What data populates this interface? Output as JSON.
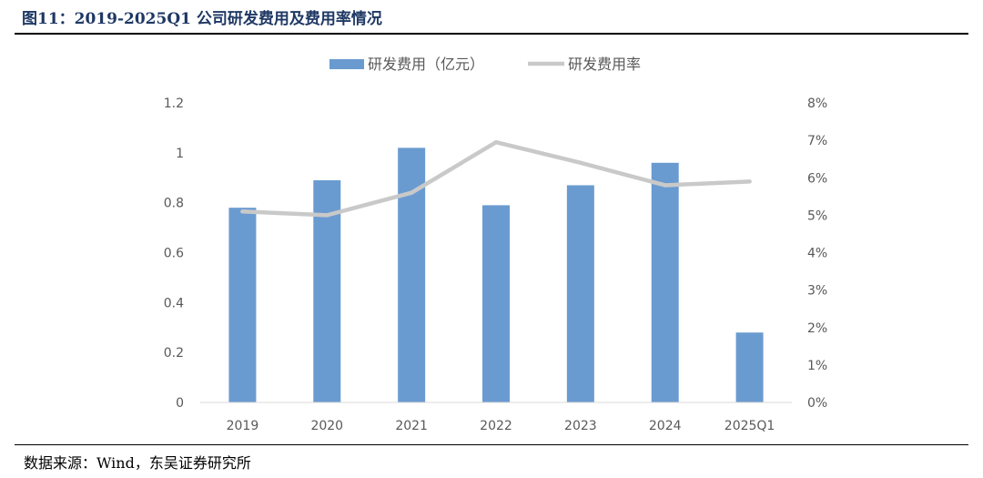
{
  "title": "图11：2019-2025Q1 公司研发费用及费用率情况",
  "source": "数据来源：Wind，东吴证券研究所",
  "chart_data": {
    "type": "bar",
    "categories": [
      "2019",
      "2020",
      "2021",
      "2022",
      "2023",
      "2024",
      "2025Q1"
    ],
    "series": [
      {
        "name": "研发费用（亿元）",
        "type": "bar",
        "axis": "left",
        "values": [
          0.78,
          0.89,
          1.02,
          0.79,
          0.87,
          0.96,
          0.28
        ]
      },
      {
        "name": "研发费用率",
        "type": "line",
        "axis": "right",
        "values": [
          5.1,
          5.0,
          5.6,
          6.95,
          6.4,
          5.8,
          5.9
        ]
      }
    ],
    "left_ticks": [
      "0",
      "0.2",
      "0.4",
      "0.6",
      "0.8",
      "1",
      "1.2"
    ],
    "right_ticks": [
      "0%",
      "1%",
      "2%",
      "3%",
      "4%",
      "5%",
      "6%",
      "7%",
      "8%"
    ],
    "ylim_left": [
      0,
      1.2
    ],
    "ylim_right": [
      0,
      8
    ],
    "grid": false,
    "legend_position": "top-center",
    "colors": {
      "bar": "#6a9bd0",
      "line": "#c9c9c9"
    }
  }
}
